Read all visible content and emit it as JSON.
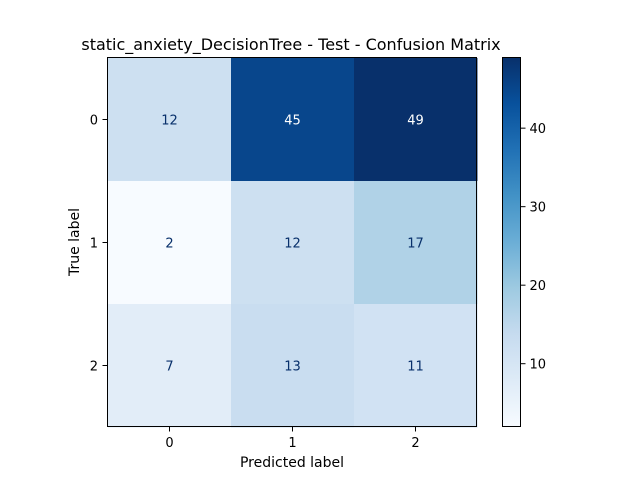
{
  "chart_data": {
    "type": "heatmap",
    "title": "static_anxiety_DecisionTree - Test - Confusion Matrix",
    "xlabel": "Predicted label",
    "ylabel": "True label",
    "x_categories": [
      "0",
      "1",
      "2"
    ],
    "y_categories": [
      "0",
      "1",
      "2"
    ],
    "values": [
      [
        12,
        45,
        49
      ],
      [
        2,
        12,
        17
      ],
      [
        7,
        13,
        11
      ]
    ],
    "colormap": "Blues",
    "colorbar": {
      "min": 2,
      "max": 49,
      "ticks": [
        10,
        20,
        30,
        40
      ]
    },
    "text_colors": {
      "dark_bg": "#ffffff",
      "light_bg": "#08306b"
    }
  }
}
